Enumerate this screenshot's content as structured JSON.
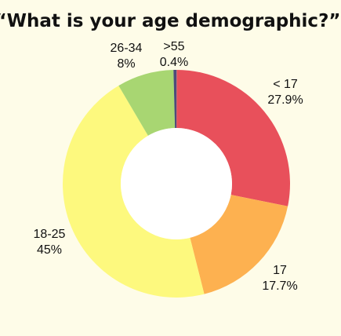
{
  "chart_data": {
    "type": "pie",
    "title": "“What is your age demographic?”",
    "slices": [
      {
        "name": "< 17",
        "pct_label": "27.9%",
        "value": 27.9,
        "color": "#e8505b"
      },
      {
        "name": "17",
        "pct_label": "17.7%",
        "value": 17.7,
        "color": "#fdb150"
      },
      {
        "name": "18-25",
        "pct_label": "45%",
        "value": 45.0,
        "color": "#fdf97e"
      },
      {
        "name": "26-34",
        "pct_label": "8%",
        "value": 8.0,
        "color": "#a8d672"
      },
      {
        "name": ">55",
        "pct_label": "0.4%",
        "value": 0.4,
        "color": "#4d4a7a"
      }
    ],
    "extra_slice_color": "#7fb0b6",
    "colors": {
      "background": "#fefce8",
      "hole": "#ffffff"
    }
  }
}
